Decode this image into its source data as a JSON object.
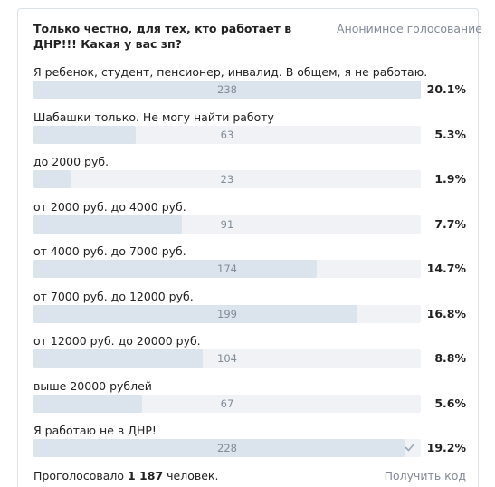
{
  "poll": {
    "question": "Только честно, для тех, кто работает в ДНР!!! Какая у вас зп?",
    "mode": "Анонимное голосование",
    "options": [
      {
        "label": "Я ребенок, студент, пенсионер, инвалид. В общем, я не работаю.",
        "votes": "238",
        "percent": "20.1%",
        "share": 1.0,
        "checked": false
      },
      {
        "label": "Шабашки только. Не могу найти работу",
        "votes": "63",
        "percent": "5.3%",
        "share": 0.2647,
        "checked": false
      },
      {
        "label": "до 2000 руб.",
        "votes": "23",
        "percent": "1.9%",
        "share": 0.0966,
        "checked": false
      },
      {
        "label": "от 2000 руб. до 4000 руб.",
        "votes": "91",
        "percent": "7.7%",
        "share": 0.3824,
        "checked": false
      },
      {
        "label": "от 4000 руб. до 7000 руб.",
        "votes": "174",
        "percent": "14.7%",
        "share": 0.7311,
        "checked": false
      },
      {
        "label": "от 7000 руб. до 12000 руб.",
        "votes": "199",
        "percent": "16.8%",
        "share": 0.8361,
        "checked": false
      },
      {
        "label": "от 12000 руб. до 20000 руб.",
        "votes": "104",
        "percent": "8.8%",
        "share": 0.437,
        "checked": false
      },
      {
        "label": "выше 20000 рублей",
        "votes": "67",
        "percent": "5.6%",
        "share": 0.2815,
        "checked": false
      },
      {
        "label": "Я работаю не в ДНР!",
        "votes": "228",
        "percent": "19.2%",
        "share": 0.958,
        "checked": true
      }
    ],
    "footer": {
      "voted_prefix": "Проголосовало ",
      "voted_count": "1 187",
      "voted_suffix": " человек.",
      "code_link": "Получить код"
    },
    "colors": {
      "bar_fill": "#dbe3ec",
      "bar_track": "#f0f2f5",
      "muted_text": "#828a99",
      "check": "#99a9bd"
    }
  }
}
